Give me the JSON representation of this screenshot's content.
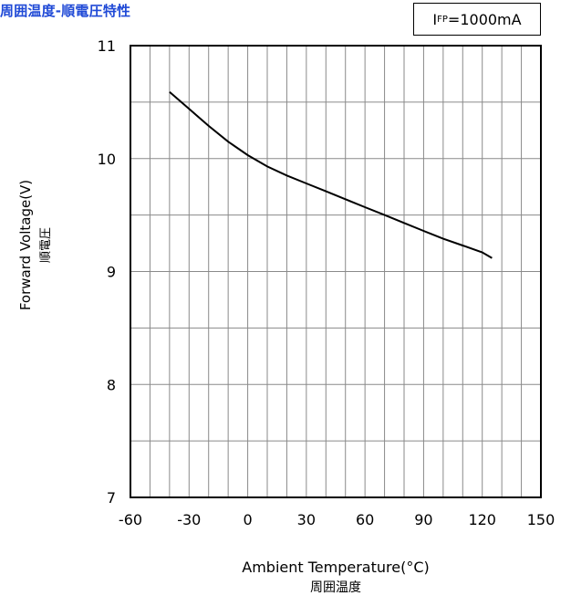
{
  "chart_data": {
    "type": "line",
    "title": "周囲温度-順電圧特性",
    "condition": {
      "symbol": "I",
      "subscript": "FP",
      "value": "=1000mA"
    },
    "xlabel": "Ambient Temperature(°C)",
    "xlabel_ja": "周囲温度",
    "ylabel": "Forward Voltage(V)",
    "ylabel_ja": "順電圧",
    "xlim": [
      -60,
      150
    ],
    "ylim": [
      7,
      11
    ],
    "xticks": [
      -60,
      -30,
      0,
      30,
      60,
      90,
      120,
      150
    ],
    "yticks": [
      7,
      8,
      9,
      10,
      11
    ],
    "grid": true,
    "series": [
      {
        "x": [
          -40,
          -30,
          -20,
          -10,
          0,
          10,
          20,
          30,
          40,
          50,
          60,
          70,
          80,
          90,
          100,
          110,
          120,
          125
        ],
        "y": [
          10.59,
          10.44,
          10.29,
          10.15,
          10.03,
          9.93,
          9.85,
          9.78,
          9.71,
          9.64,
          9.57,
          9.5,
          9.43,
          9.36,
          9.29,
          9.23,
          9.17,
          9.12
        ]
      }
    ]
  }
}
